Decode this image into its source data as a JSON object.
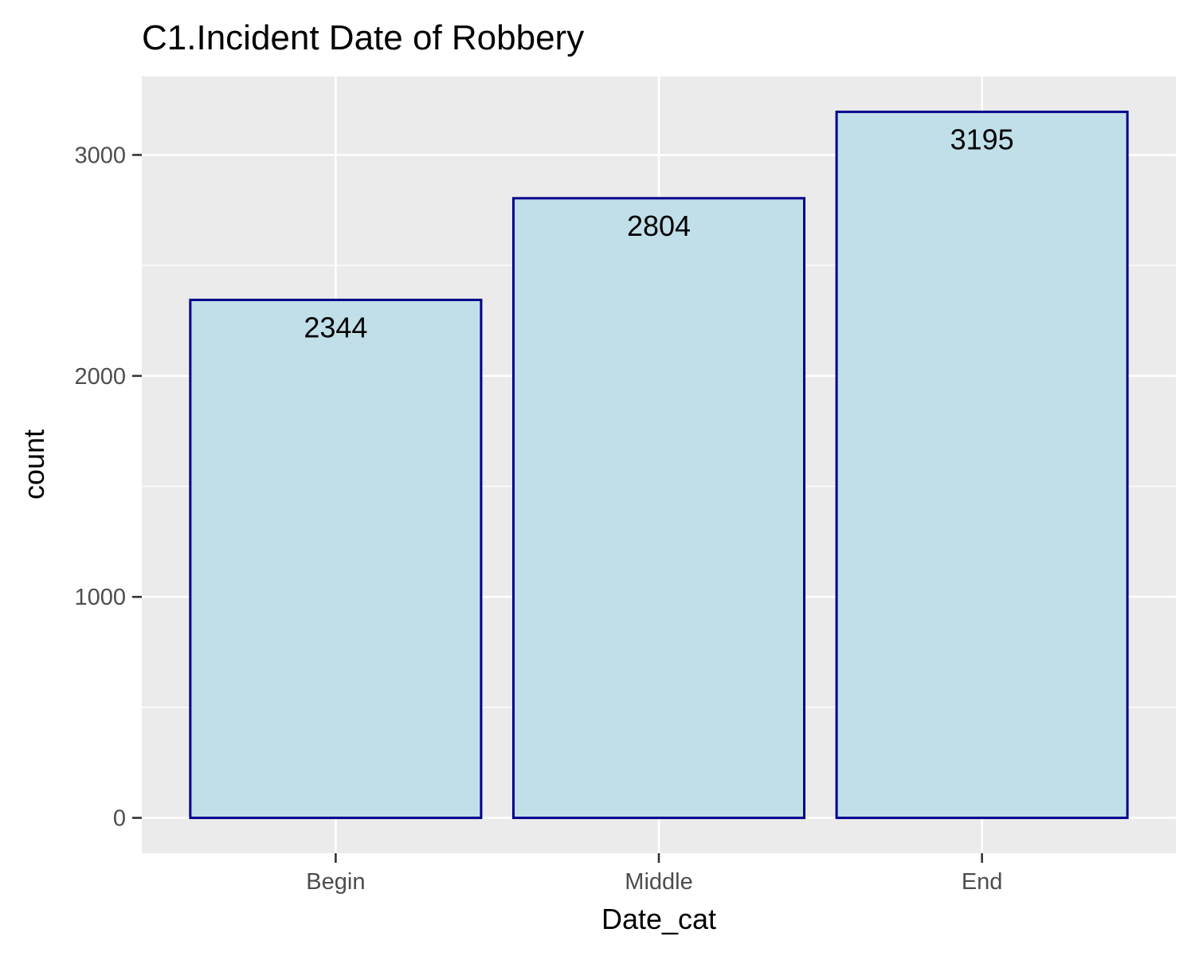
{
  "chart_data": {
    "type": "bar",
    "title": "C1.Incident Date of Robbery",
    "xlabel": "Date_cat",
    "ylabel": "count",
    "categories": [
      "Begin",
      "Middle",
      "End"
    ],
    "values": [
      2344,
      2804,
      3195
    ],
    "data_labels": [
      "2344",
      "2804",
      "3195"
    ],
    "yticks": [
      0,
      1000,
      2000,
      3000
    ],
    "ytick_labels": [
      "0",
      "1000",
      "2000",
      "3000"
    ],
    "ylim": [
      -160,
      3355
    ],
    "grid": true,
    "legend": "none",
    "colors": {
      "panel_background": "#ebebeb",
      "grid_line": "#ffffff",
      "bar_fill": "#c1dfe9",
      "bar_stroke": "#00008b",
      "tick_mark": "#333333"
    }
  }
}
